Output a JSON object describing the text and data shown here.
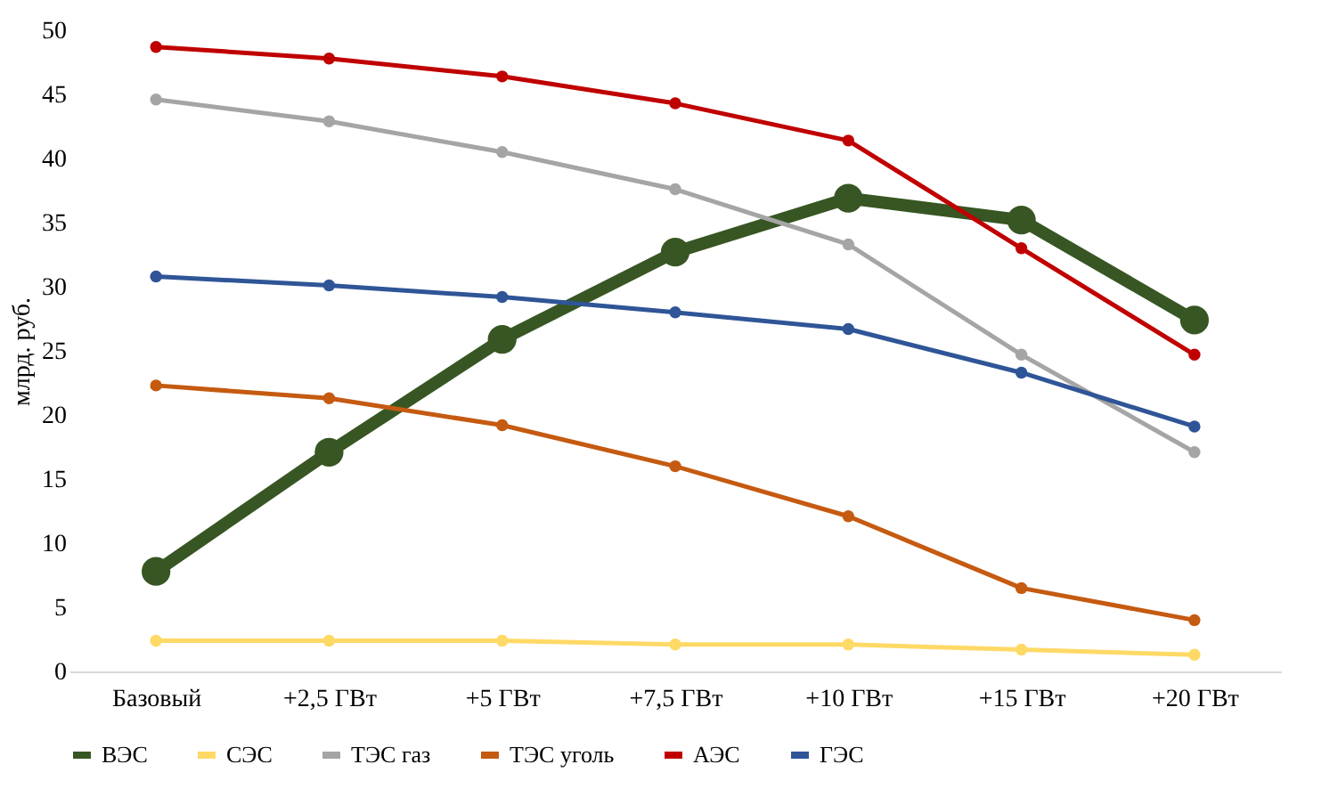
{
  "chart_data": {
    "type": "line",
    "ylabel": "млрд. руб.",
    "categories": [
      "Базовый",
      "+2,5 ГВт",
      "+5 ГВт",
      "+7,5 ГВт",
      "+10 ГВт",
      "+15 ГВт",
      "+20 ГВт"
    ],
    "series": [
      {
        "name": "ВЭС",
        "color": "#375623",
        "values": [
          7.8,
          17.1,
          25.9,
          32.7,
          36.9,
          35.2,
          27.4
        ]
      },
      {
        "name": "СЭС",
        "color": "#ffd966",
        "values": [
          2.4,
          2.4,
          2.4,
          2.1,
          2.1,
          1.7,
          1.3
        ]
      },
      {
        "name": "ТЭС газ",
        "color": "#a5a5a5",
        "values": [
          44.6,
          42.9,
          40.5,
          37.6,
          33.3,
          24.7,
          17.1
        ]
      },
      {
        "name": "ТЭС уголь",
        "color": "#c55a11",
        "values": [
          22.3,
          21.3,
          19.2,
          16.0,
          12.1,
          6.5,
          4.0
        ]
      },
      {
        "name": "АЭС",
        "color": "#c00000",
        "values": [
          48.7,
          47.8,
          46.4,
          44.3,
          41.4,
          33.0,
          24.7
        ]
      },
      {
        "name": "ГЭС",
        "color": "#2f5597",
        "values": [
          30.8,
          30.1,
          29.2,
          28.0,
          26.7,
          23.3,
          19.1
        ]
      }
    ],
    "ylim": [
      0,
      50
    ],
    "yticks": [
      0,
      5,
      10,
      15,
      20,
      25,
      30,
      35,
      40,
      45,
      50
    ],
    "grid": false,
    "legend": "bottom",
    "marker": "circle",
    "line_style": "solid"
  }
}
